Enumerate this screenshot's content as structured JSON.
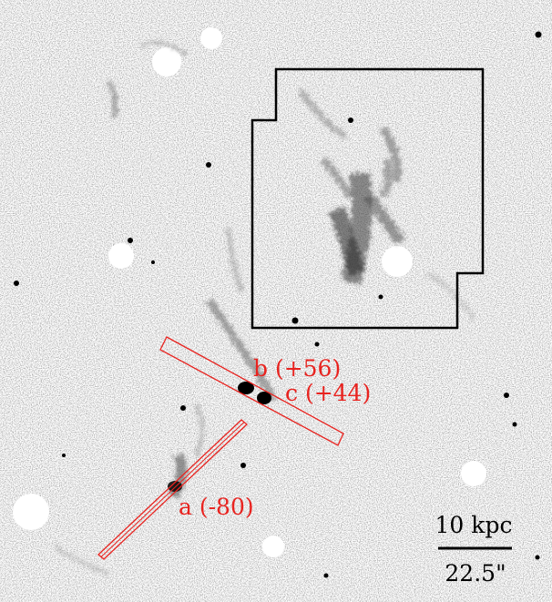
{
  "slits": [
    {
      "id": "b",
      "label": "b (+56)"
    },
    {
      "id": "c",
      "label": "c (+44)"
    },
    {
      "id": "a",
      "label": "a (-80)"
    }
  ],
  "scale_bar": {
    "physical": "10 kpc",
    "angular": "22.5\""
  },
  "colors": {
    "slit": "#e8231f",
    "label": "#e8231f",
    "outline": "#000000",
    "background": "#ffffff",
    "emission": "#555555"
  }
}
